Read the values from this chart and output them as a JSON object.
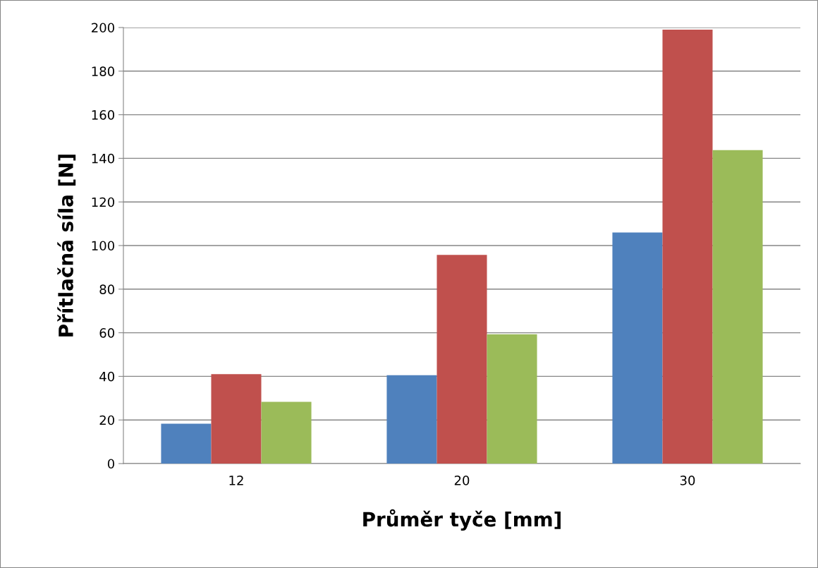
{
  "chart_data": {
    "type": "bar",
    "xlabel": "Průměr tyče [mm]",
    "ylabel": "Přítlačná síla [N]",
    "categories": [
      "12",
      "20",
      "30"
    ],
    "series": [
      {
        "color": "#4f81bd",
        "values": [
          18.3,
          40.5,
          106
        ]
      },
      {
        "color": "#c0504d",
        "values": [
          41,
          95.7,
          199
        ]
      },
      {
        "color": "#9bbb59",
        "values": [
          28.3,
          59.3,
          143.8
        ]
      }
    ],
    "ylim": [
      0,
      200
    ],
    "yticks": [
      0,
      20,
      40,
      60,
      80,
      100,
      120,
      140,
      160,
      180,
      200
    ],
    "grid": "y",
    "legend": false
  }
}
